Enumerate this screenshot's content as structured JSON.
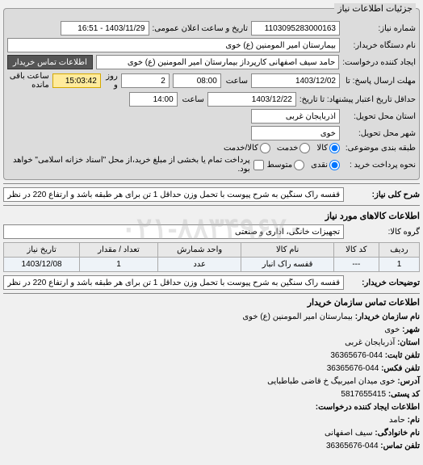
{
  "fieldset_legend": "جزئیات اطلاعات نیاز",
  "row1": {
    "label_number": "شماره نیاز:",
    "number": "1103095283000163",
    "label_datetime": "تاریخ و ساعت اعلان عمومی:",
    "datetime": "1403/11/29 - 16:51"
  },
  "row2": {
    "label_device": "نام دستگاه خریدار:",
    "device": "بیمارستان امیر المومنین (ع) خوی"
  },
  "row3": {
    "label_creator": "ایجاد کننده درخواست:",
    "creator": "حامد سیف اصفهانی کارپرداز بیمارستان امیر المومنین (ع) خوی",
    "contact_btn": "اطلاعات تماس خریدار"
  },
  "row4": {
    "label_deadline": "مهلت ارسال پاسخ: تا",
    "date": "1403/12/02",
    "label_hour": "ساعت",
    "hour": "08:00",
    "label_days": "روز و",
    "days": "2",
    "label_remain": "ساعت باقی مانده",
    "remain": "15:03:42"
  },
  "row5": {
    "label_until": "حداقل تاریخ اعتبار پیشنهاد: تا تاریخ:",
    "date": "1403/12/22",
    "label_hour": "ساعت",
    "hour": "14:00"
  },
  "row6": {
    "label_province": "استان محل تحویل:",
    "province": "آذربایجان غربی"
  },
  "row7": {
    "label_city": "شهر محل تحویل:",
    "city": "خوی"
  },
  "row8": {
    "label_pkg": "طبقه بندی موضوعی:",
    "r1": "کالا",
    "r2": "خدمت",
    "r3": "کالا/خدمت"
  },
  "row9": {
    "label_pay": "نحوه پرداخت خرید :",
    "r1": "نقدی",
    "r2": "متوسط",
    "chk": "پرداخت تمام یا بخشی از مبلغ خرید،از محل \"اسناد خزانه اسلامی\" خواهد بود."
  },
  "desc": {
    "label": "شرح کلی نیاز:",
    "text": "قفسه راک سنگین به شرح پیوست با تحمل وزن حداقل 1 تن برای هر طبقه باشد و ارتفاع 220 در نظر گرفته شود."
  },
  "goods_title": "اطلاعات کالاهای مورد نیاز",
  "group": {
    "label": "گروه کالا:",
    "text": "تجهیزات خانگی، اداری و صنعتی"
  },
  "table": {
    "headers": [
      "ردیف",
      "کد کالا",
      "نام کالا",
      "واحد شمارش",
      "تعداد / مقدار",
      "تاریخ نیاز"
    ],
    "row": [
      "1",
      "---",
      "قفسه راک انبار",
      "عدد",
      "1",
      "1403/12/08"
    ]
  },
  "buyer_notes": {
    "label": "توضیحات خریدار:",
    "text": "قفسه راک سنگین به شرح پیوست با تحمل وزن حداقل 1 تن برای هر طبقه باشد و ارتفاع 220 در نظر گرفته شود."
  },
  "contact_title": "اطلاعات تماس سازمان خریدار",
  "contact": {
    "l_org": "نام سازمان خریدار:",
    "org": "بیمارستان امیر المومنین (ع) خوی",
    "l_city": "شهر:",
    "city": "خوی",
    "l_prov": "استان:",
    "prov": "آذربایجان غربی",
    "l_tel": "تلفن ثابت:",
    "tel": "044-36365676",
    "l_fax": "تلفن فکس:",
    "fax": "044-36365676",
    "l_addr": "آدرس:",
    "addr": "خوی میدان امیربیگ خ قاضی طباطبایی",
    "l_post": "کد پستی:",
    "post": "5817655415",
    "req_title": "اطلاعات ایجاد کننده درخواست:",
    "l_name": "نام:",
    "name": "حامد",
    "l_family": "نام خانوادگی:",
    "family": "سیف اصفهانی",
    "l_phone": "تلفن تماس:",
    "phone": "044-36365676"
  },
  "watermark": "۰۲۱-۸۸۳۴۹۶۷۰"
}
